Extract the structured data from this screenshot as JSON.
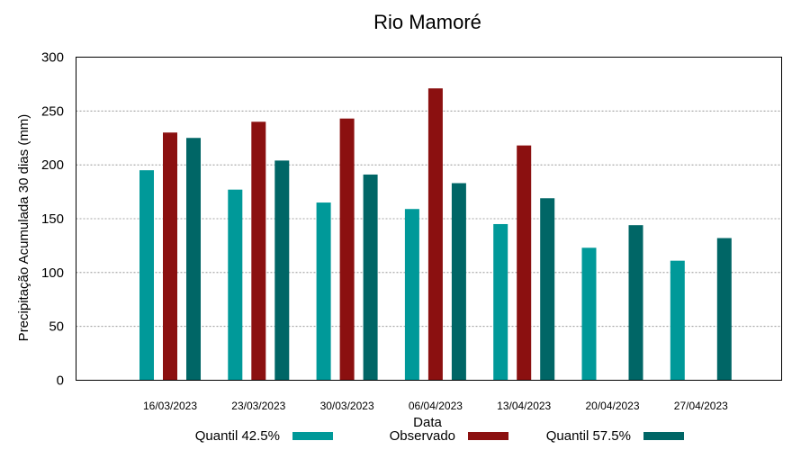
{
  "chart_data": {
    "type": "bar",
    "title": "Rio Mamoré",
    "xlabel": "Data",
    "ylabel": "Precipitação Acumulada 30 dias (mm)",
    "ylim": [
      0,
      300
    ],
    "yticks": [
      0,
      50,
      100,
      150,
      200,
      250,
      300
    ],
    "grid": true,
    "legend_position": "bottom",
    "categories": [
      "16/03/2023",
      "23/03/2023",
      "30/03/2023",
      "06/04/2023",
      "13/04/2023",
      "20/04/2023",
      "27/04/2023"
    ],
    "series": [
      {
        "name": "Quantil 42.5%",
        "color": "#009999",
        "values": [
          195,
          177,
          165,
          159,
          145,
          123,
          111
        ]
      },
      {
        "name": "Observado",
        "color": "#8b1010",
        "values": [
          230,
          240,
          243,
          271,
          218,
          null,
          null
        ]
      },
      {
        "name": "Quantil 57.5%",
        "color": "#006666",
        "values": [
          225,
          204,
          191,
          183,
          169,
          144,
          132
        ]
      }
    ]
  }
}
